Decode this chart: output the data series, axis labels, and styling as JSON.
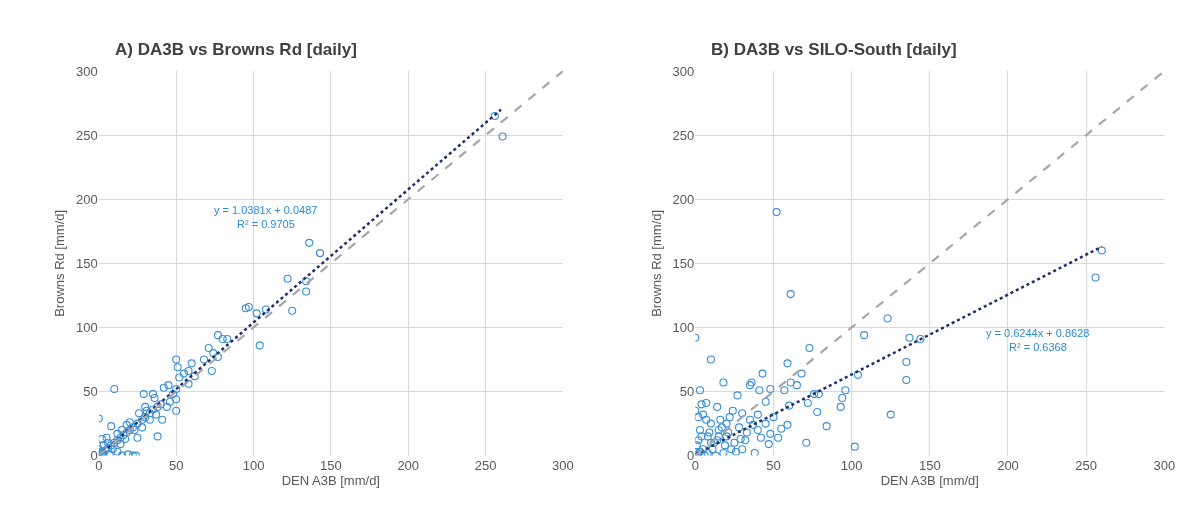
{
  "chart_data": [
    {
      "type": "scatter",
      "title": "A) DA3B vs Browns Rd [daily]",
      "xlabel": "DEN A3B [mm/d]",
      "ylabel": "Browns Rd [mm/d]",
      "xlim": [
        0,
        300
      ],
      "ylim": [
        0,
        300
      ],
      "xticks": [
        0,
        50,
        100,
        150,
        200,
        250,
        300
      ],
      "yticks": [
        0,
        50,
        100,
        150,
        200,
        250,
        300
      ],
      "grid": true,
      "annotations": [
        "y = 1.0381x + 0.0487",
        "R² = 0.9705"
      ],
      "series": [
        {
          "marker": "circle",
          "color": "#3a8fd4",
          "x": [
            256,
            261,
            136,
            143,
            122,
            134,
            134,
            125,
            95,
            97,
            102,
            108,
            104,
            77,
            80,
            83,
            71,
            74,
            77,
            68,
            73,
            50,
            51,
            60,
            55,
            58,
            62,
            52,
            58,
            50,
            45,
            42,
            48,
            50,
            50,
            46,
            40,
            38,
            35,
            33,
            30,
            28,
            25,
            22,
            20,
            18,
            16,
            14,
            12,
            10,
            8,
            6,
            4,
            2,
            1,
            0,
            29,
            35,
            41,
            38,
            25,
            10,
            0,
            8,
            2,
            5,
            3,
            0,
            1,
            15,
            19,
            22,
            24,
            12,
            7,
            33,
            26,
            30,
            36,
            44,
            15,
            17,
            20,
            23,
            12,
            14,
            6,
            9,
            3,
            0,
            18,
            28,
            31,
            37
          ],
          "values": [
            265,
            249,
            166,
            158,
            138,
            136,
            128,
            113,
            115,
            116,
            111,
            114,
            86,
            94,
            91,
            91,
            84,
            80,
            77,
            75,
            66,
            75,
            69,
            72,
            64,
            66,
            62,
            61,
            56,
            52,
            55,
            53,
            48,
            44,
            35,
            42,
            40,
            38,
            36,
            33,
            30,
            28,
            25,
            22,
            20,
            18,
            16,
            14,
            12,
            10,
            8,
            6,
            4,
            2,
            1,
            0,
            48,
            48,
            28,
            15,
            14,
            52,
            29,
            23,
            13,
            14,
            8,
            5,
            3,
            0,
            1,
            0,
            0,
            3,
            1,
            28,
            33,
            38,
            45,
            38,
            20,
            13,
            26,
            20,
            17,
            9,
            10,
            5,
            0,
            2,
            24,
            22,
            35,
            32
          ]
        },
        {
          "type": "line",
          "marker": "none",
          "line_style": "dotted",
          "color": "#1f2d6e",
          "x": [
            0,
            260
          ],
          "values": [
            0,
            270
          ]
        },
        {
          "type": "line",
          "marker": "none",
          "line_style": "dashed",
          "color": "#a6a6a6",
          "x": [
            0,
            300
          ],
          "values": [
            0,
            300
          ]
        }
      ]
    },
    {
      "type": "scatter",
      "title": "B) DA3B vs SILO-South [daily]",
      "xlabel": "DEN A3B [mm/d]",
      "ylabel": "Browns Rd [mm/d]",
      "xlim": [
        0,
        300
      ],
      "ylim": [
        0,
        300
      ],
      "xticks": [
        0,
        50,
        100,
        150,
        200,
        250,
        300
      ],
      "yticks": [
        0,
        50,
        100,
        150,
        200,
        250,
        300
      ],
      "grid": true,
      "annotations": [
        "y = 0.6244x + 0.8628",
        "R² = 0.6368"
      ],
      "series": [
        {
          "marker": "circle",
          "color": "#3a8fd4",
          "x": [
            52,
            61,
            123,
            108,
            137,
            144,
            135,
            135,
            260,
            256,
            0,
            10,
            73,
            59,
            68,
            43,
            18,
            36,
            35,
            3,
            41,
            48,
            57,
            61,
            65,
            4,
            7,
            96,
            94,
            93,
            79,
            76,
            72,
            78,
            84,
            125,
            104,
            102,
            71,
            60,
            59,
            53,
            47,
            55,
            50,
            45,
            40,
            38,
            27,
            14,
            0,
            2,
            5,
            10,
            15,
            20,
            25,
            30,
            35,
            40,
            45,
            12,
            8,
            3,
            1,
            0,
            5,
            18,
            22,
            28,
            32,
            16,
            24,
            11,
            6,
            2,
            9,
            14,
            19,
            26,
            33,
            37,
            42,
            48,
            30,
            20,
            7,
            4,
            13,
            23,
            29,
            0,
            1,
            3,
            10,
            15,
            8,
            17,
            21
          ],
          "values": [
            190,
            126,
            107,
            94,
            92,
            91,
            73,
            59,
            160,
            139,
            92,
            75,
            84,
            72,
            64,
            64,
            57,
            57,
            55,
            51,
            51,
            52,
            51,
            57,
            55,
            40,
            41,
            51,
            45,
            38,
            48,
            48,
            41,
            34,
            23,
            32,
            63,
            7,
            10,
            39,
            24,
            14,
            9,
            21,
            30,
            42,
            32,
            2,
            47,
            38,
            35,
            30,
            32,
            25,
            20,
            15,
            10,
            5,
            28,
            20,
            25,
            10,
            15,
            20,
            8,
            3,
            5,
            2,
            30,
            22,
            12,
            28,
            35,
            5,
            0,
            12,
            18,
            12,
            8,
            3,
            18,
            24,
            14,
            17,
            33,
            25,
            28,
            15,
            0,
            5,
            13,
            0,
            1,
            3,
            10,
            15,
            2,
            22,
            18
          ]
        },
        {
          "type": "line",
          "marker": "none",
          "line_style": "dotted",
          "color": "#1f2d6e",
          "x": [
            0,
            260
          ],
          "values": [
            1,
            163
          ]
        },
        {
          "type": "line",
          "marker": "none",
          "line_style": "dashed",
          "color": "#a6a6a6",
          "x": [
            0,
            300
          ],
          "values": [
            0,
            300
          ]
        }
      ]
    }
  ]
}
